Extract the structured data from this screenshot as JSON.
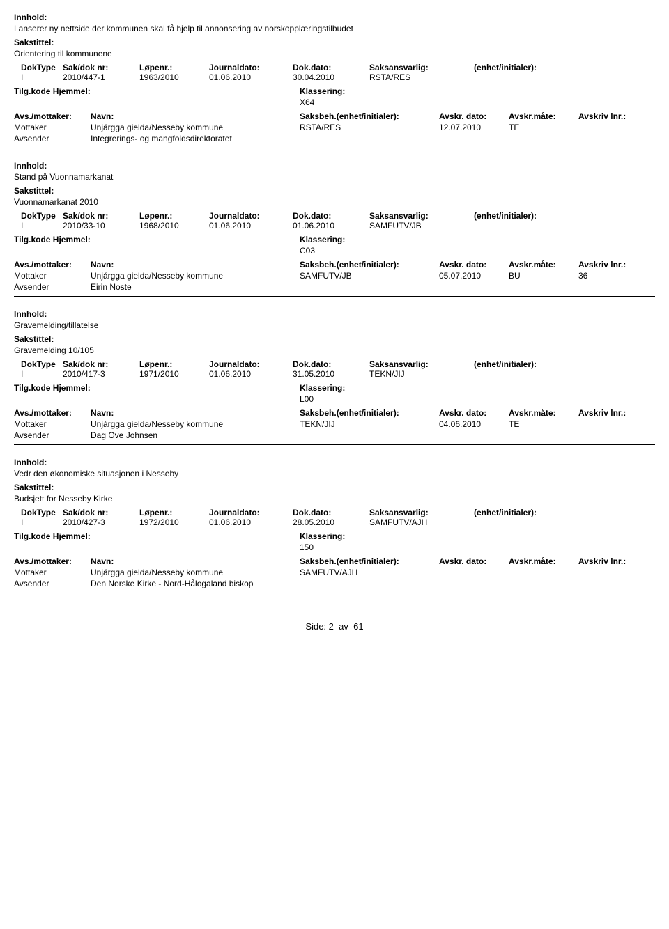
{
  "labels": {
    "innhold": "Innhold:",
    "sakstittel": "Sakstittel:",
    "doktype": "DokType",
    "sakdoknr": "Sak/dok nr:",
    "lopenr": "Løpenr.:",
    "journaldato": "Journaldato:",
    "dokdato": "Dok.dato:",
    "saksansvarlig": "Saksansvarlig:",
    "enhet_initialer": "(enhet/initialer):",
    "tilgkode": "Tilg.kode",
    "hjemmel": "Hjemmel:",
    "klassering": "Klassering:",
    "avs_mottaker": "Avs./mottaker:",
    "navn": "Navn:",
    "saksbeh": "Saksbeh.",
    "saksbeh_enhet": "(enhet/initialer):",
    "avskr_dato": "Avskr. dato:",
    "avskr_mate": "Avskr.måte:",
    "avskriv_lnr": "Avskriv lnr.:",
    "mottaker": "Mottaker",
    "avsender": "Avsender"
  },
  "records": [
    {
      "innhold": "Lanserer ny nettside der kommunen skal få hjelp til annonsering av norskopplæringstilbudet",
      "sakstittel": "Orientering til kommunene",
      "doktype": "I",
      "sakdoknr": "2010/447-1",
      "lopenr": "1963/2010",
      "journaldato": "01.06.2010",
      "dokdato": "30.04.2010",
      "saksansvarlig": "RSTA/RES",
      "klassering": "X64",
      "parties": [
        {
          "role": "Mottaker",
          "name": "Unjárgga gielda/Nesseby kommune",
          "saksbeh": "RSTA/RES",
          "avdato": "12.07.2010",
          "avmate": "TE",
          "avlnr": ""
        },
        {
          "role": "Avsender",
          "name": "Integrerings- og mangfoldsdirektoratet",
          "saksbeh": "",
          "avdato": "",
          "avmate": "",
          "avlnr": ""
        }
      ]
    },
    {
      "innhold": "Stand på Vuonnamarkanat",
      "sakstittel": "Vuonnamarkanat 2010",
      "doktype": "I",
      "sakdoknr": "2010/33-10",
      "lopenr": "1968/2010",
      "journaldato": "01.06.2010",
      "dokdato": "01.06.2010",
      "saksansvarlig": "SAMFUTV/JB",
      "klassering": "C03",
      "parties": [
        {
          "role": "Mottaker",
          "name": "Unjárgga gielda/Nesseby kommune",
          "saksbeh": "SAMFUTV/JB",
          "avdato": "05.07.2010",
          "avmate": "BU",
          "avlnr": "36"
        },
        {
          "role": "Avsender",
          "name": "Eirin Noste",
          "saksbeh": "",
          "avdato": "",
          "avmate": "",
          "avlnr": ""
        }
      ]
    },
    {
      "innhold": "Gravemelding/tillatelse",
      "sakstittel": "Gravemelding 10/105",
      "doktype": "I",
      "sakdoknr": "2010/417-3",
      "lopenr": "1971/2010",
      "journaldato": "01.06.2010",
      "dokdato": "31.05.2010",
      "saksansvarlig": "TEKN/JIJ",
      "klassering": "L00",
      "parties": [
        {
          "role": "Mottaker",
          "name": "Unjárgga gielda/Nesseby kommune",
          "saksbeh": "TEKN/JIJ",
          "avdato": "04.06.2010",
          "avmate": "TE",
          "avlnr": ""
        },
        {
          "role": "Avsender",
          "name": "Dag Ove Johnsen",
          "saksbeh": "",
          "avdato": "",
          "avmate": "",
          "avlnr": ""
        }
      ]
    },
    {
      "innhold": "Vedr den økonomiske situasjonen i Nesseby",
      "sakstittel": "Budsjett for Nesseby Kirke",
      "doktype": "I",
      "sakdoknr": "2010/427-3",
      "lopenr": "1972/2010",
      "journaldato": "01.06.2010",
      "dokdato": "28.05.2010",
      "saksansvarlig": "SAMFUTV/AJH",
      "klassering": "150",
      "parties": [
        {
          "role": "Mottaker",
          "name": "Unjárgga gielda/Nesseby kommune",
          "saksbeh": "SAMFUTV/AJH",
          "avdato": "",
          "avmate": "",
          "avlnr": ""
        },
        {
          "role": "Avsender",
          "name": "Den Norske Kirke - Nord-Hålogaland biskop",
          "saksbeh": "",
          "avdato": "",
          "avmate": "",
          "avlnr": ""
        }
      ]
    }
  ],
  "footer": {
    "side_label": "Side:",
    "page": "2",
    "av": "av",
    "total": "61"
  }
}
